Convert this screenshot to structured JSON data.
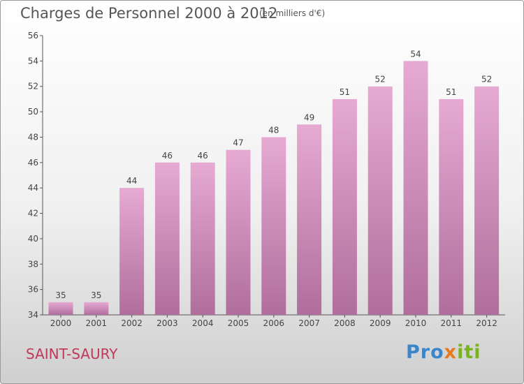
{
  "title": "Charges de Personnel 2000 à 2012",
  "subtitle": "(en milliers d'€)",
  "commune": "SAINT-SAURY",
  "logo": {
    "text": "Proxiti",
    "part1": "Pro",
    "part2": "x",
    "part3": "iti"
  },
  "colors": {
    "bar_top": "#e6aad3",
    "bar_bottom": "#b06e9c",
    "commune": "#c0395a"
  },
  "chart_data": {
    "type": "bar",
    "title": "Charges de Personnel 2000 à 2012",
    "subtitle": "(en milliers d'€)",
    "categories": [
      "2000",
      "2001",
      "2002",
      "2003",
      "2004",
      "2005",
      "2006",
      "2007",
      "2008",
      "2009",
      "2010",
      "2011",
      "2012"
    ],
    "values": [
      35,
      35,
      44,
      46,
      46,
      47,
      48,
      49,
      51,
      52,
      54,
      51,
      52
    ],
    "ylim": [
      34,
      56
    ],
    "yticks": [
      34,
      36,
      38,
      40,
      42,
      44,
      46,
      48,
      50,
      52,
      54,
      56
    ],
    "grid": false,
    "data_labels": true
  }
}
